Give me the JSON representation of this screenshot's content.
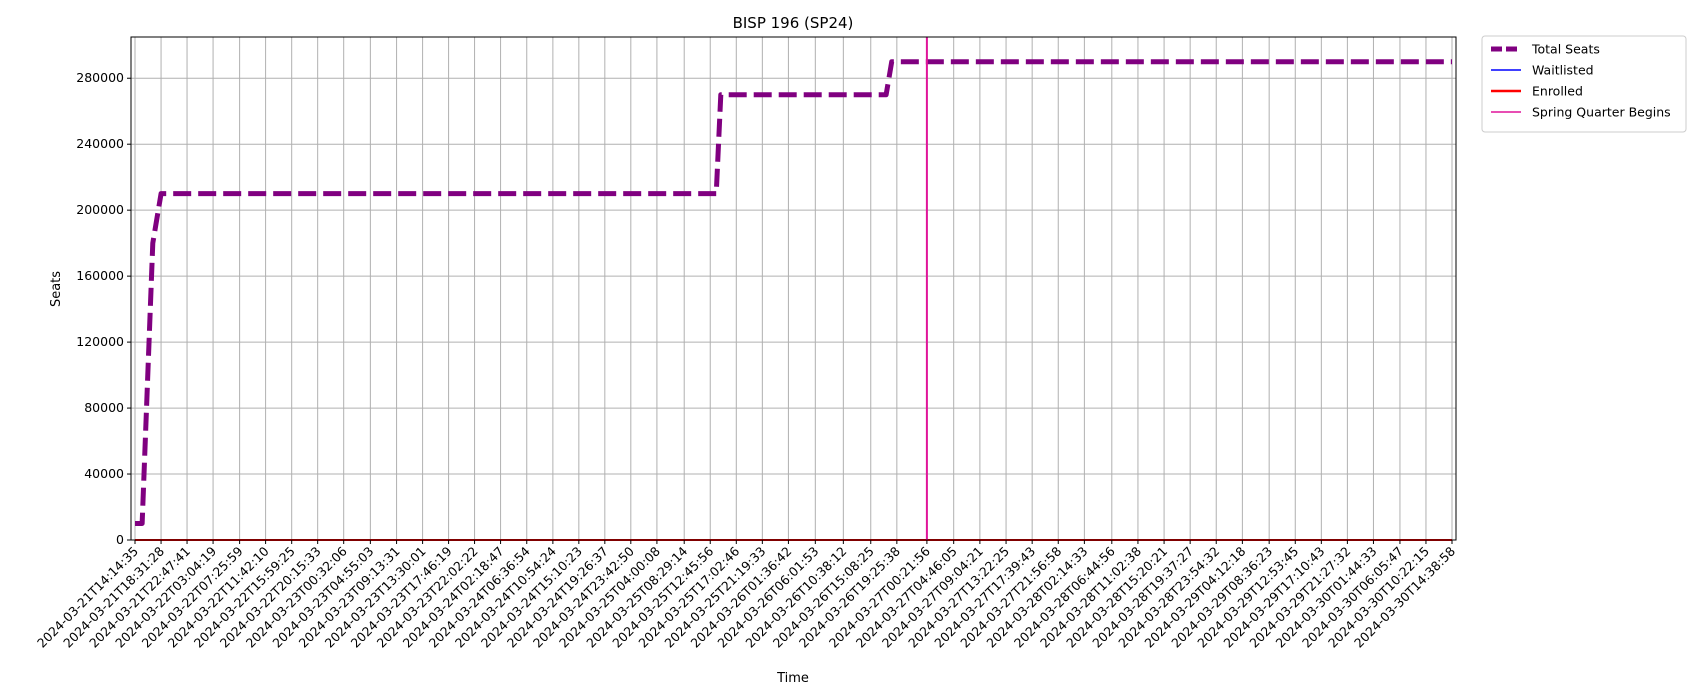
{
  "chart_data": {
    "type": "line",
    "title": "BISP 196 (SP24)",
    "xlabel": "Time",
    "ylabel": "Seats",
    "ylim": [
      0,
      305000
    ],
    "yticks": [
      0,
      40000,
      80000,
      120000,
      160000,
      200000,
      240000,
      280000
    ],
    "grid": true,
    "legend_position": "outside top-right",
    "x_categories": [
      "2024-03-21T14:14:35",
      "2024-03-21T18:31:28",
      "2024-03-21T22:47:41",
      "2024-03-22T03:04:19",
      "2024-03-22T07:25:59",
      "2024-03-22T11:42:10",
      "2024-03-22T15:59:25",
      "2024-03-22T20:15:33",
      "2024-03-23T00:32:06",
      "2024-03-23T04:55:03",
      "2024-03-23T09:13:31",
      "2024-03-23T13:30:01",
      "2024-03-23T17:46:19",
      "2024-03-23T22:02:22",
      "2024-03-24T02:18:47",
      "2024-03-24T06:36:54",
      "2024-03-24T10:54:24",
      "2024-03-24T15:10:23",
      "2024-03-24T19:26:37",
      "2024-03-24T23:42:50",
      "2024-03-25T04:00:08",
      "2024-03-25T08:29:14",
      "2024-03-25T12:45:56",
      "2024-03-25T17:02:46",
      "2024-03-25T21:19:33",
      "2024-03-26T01:36:42",
      "2024-03-26T06:01:53",
      "2024-03-26T10:38:12",
      "2024-03-26T15:08:25",
      "2024-03-26T19:25:38",
      "2024-03-27T00:21:56",
      "2024-03-27T04:46:05",
      "2024-03-27T09:04:21",
      "2024-03-27T13:22:25",
      "2024-03-27T17:39:43",
      "2024-03-27T21:56:58",
      "2024-03-28T02:14:33",
      "2024-03-28T06:44:56",
      "2024-03-28T11:02:38",
      "2024-03-28T15:20:21",
      "2024-03-28T19:37:27",
      "2024-03-28T23:54:32",
      "2024-03-29T04:12:18",
      "2024-03-29T08:36:23",
      "2024-03-29T12:53:45",
      "2024-03-29T17:10:43",
      "2024-03-29T21:27:32",
      "2024-03-30T01:44:33",
      "2024-03-30T06:05:47",
      "2024-03-30T10:22:15",
      "2024-03-30T14:38:58"
    ],
    "series": [
      {
        "name": "Total Seats",
        "color": "#800080",
        "style": "dashed",
        "points": [
          {
            "x": "2024-03-21T14:14:35",
            "y": 10000
          },
          {
            "x": "2024-03-21T15:25:00",
            "y": 10000
          },
          {
            "x": "2024-03-21T17:10:00",
            "y": 180000
          },
          {
            "x": "2024-03-21T18:31:28",
            "y": 210000
          },
          {
            "x": "2024-03-25T13:45:00",
            "y": 210000
          },
          {
            "x": "2024-03-25T14:30:00",
            "y": 270000
          },
          {
            "x": "2024-03-26T17:40:00",
            "y": 270000
          },
          {
            "x": "2024-03-26T18:35:00",
            "y": 290000
          },
          {
            "x": "2024-03-30T14:38:58",
            "y": 290000
          }
        ]
      },
      {
        "name": "Waitlisted",
        "color": "#0000ff",
        "style": "solid",
        "points": [
          {
            "x": "2024-03-21T14:14:35",
            "y": 0
          },
          {
            "x": "2024-03-30T14:38:58",
            "y": 0
          }
        ]
      },
      {
        "name": "Enrolled",
        "color": "#ff0000",
        "style": "solid",
        "points": [
          {
            "x": "2024-03-21T14:14:35",
            "y": 0
          },
          {
            "x": "2024-03-30T14:38:58",
            "y": 0
          }
        ]
      }
    ],
    "vertical_lines": [
      {
        "name": "Spring Quarter Begins",
        "color": "#e0149a",
        "x": "2024-03-27T00:21:56"
      }
    ],
    "legend": [
      {
        "label": "Total Seats",
        "color": "#800080",
        "style": "dashed"
      },
      {
        "label": "Waitlisted",
        "color": "#0000ff",
        "style": "solid"
      },
      {
        "label": "Enrolled",
        "color": "#ff0000",
        "style": "solid"
      },
      {
        "label": "Spring Quarter Begins",
        "color": "#e0149a",
        "style": "solid"
      }
    ]
  }
}
